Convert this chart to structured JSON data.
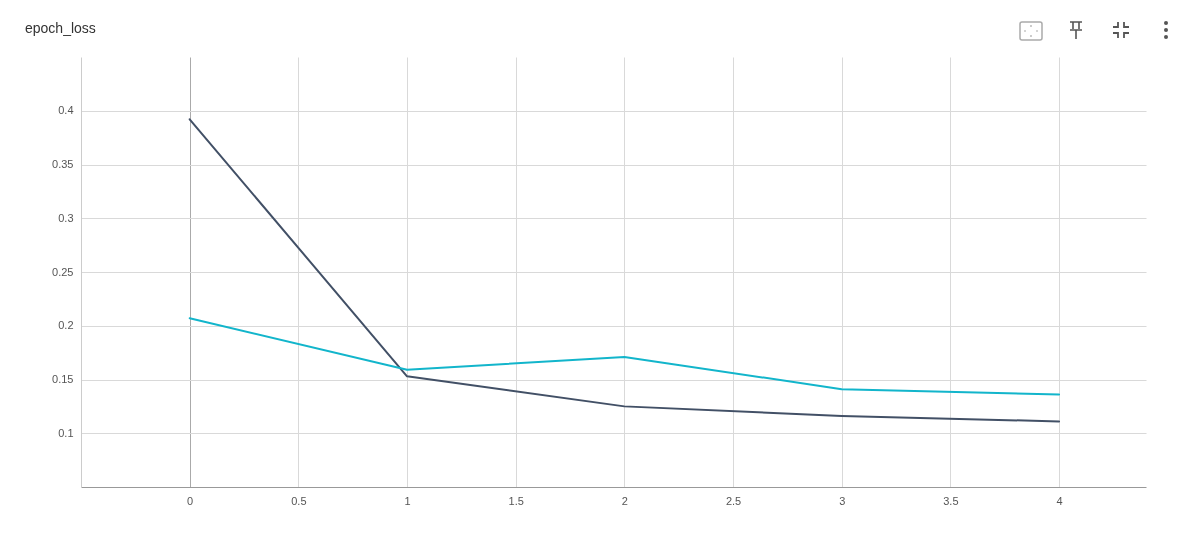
{
  "chart_data": {
    "type": "line",
    "title": "epoch_loss",
    "x": [
      0,
      1,
      2,
      3,
      4
    ],
    "series": [
      {
        "color": "#425066",
        "values": [
          0.392,
          0.153,
          0.125,
          0.116,
          0.111
        ]
      },
      {
        "color": "#12b5cb",
        "values": [
          0.207,
          0.159,
          0.171,
          0.141,
          0.136
        ]
      }
    ],
    "xlim": [
      -0.5,
      4.4
    ],
    "xticks": [
      0,
      0.5,
      1,
      1.5,
      2,
      2.5,
      3,
      3.5,
      4
    ],
    "ylim": [
      0.05,
      0.45
    ],
    "yticks": [
      0.1,
      0.15,
      0.2,
      0.25,
      0.3,
      0.35,
      0.4
    ],
    "grid": true,
    "legend": false,
    "marker": "none",
    "line_style": "solid"
  }
}
